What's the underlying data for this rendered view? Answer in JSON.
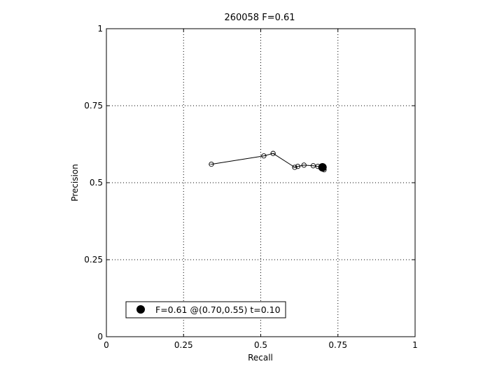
{
  "chart_data": {
    "type": "line",
    "title": "260058 F=0.61",
    "xlabel": "Recall",
    "ylabel": "Precision",
    "xlim": [
      0,
      1
    ],
    "ylim": [
      0,
      1
    ],
    "xticks": [
      0,
      0.25,
      0.5,
      0.75,
      1
    ],
    "yticks": [
      0,
      0.25,
      0.5,
      0.75,
      1
    ],
    "xtick_labels": [
      "0",
      "0.25",
      "0.5",
      "0.75",
      "1"
    ],
    "ytick_labels": [
      "0",
      "0.25",
      "0.5",
      "0.75",
      "1"
    ],
    "grid": true,
    "series": [
      {
        "x": [
          0.34,
          0.51,
          0.54,
          0.61,
          0.62,
          0.64,
          0.67,
          0.685,
          0.695,
          0.7,
          0.7,
          0.705
        ],
        "y": [
          0.56,
          0.587,
          0.595,
          0.55,
          0.553,
          0.557,
          0.555,
          0.553,
          0.55,
          0.548,
          0.545,
          0.542
        ]
      }
    ],
    "best_point": {
      "x": 0.7,
      "y": 0.55
    },
    "legend": {
      "position": "bottom-left",
      "label": "F=0.61 @(0.70,0.55) t=0.10"
    }
  }
}
